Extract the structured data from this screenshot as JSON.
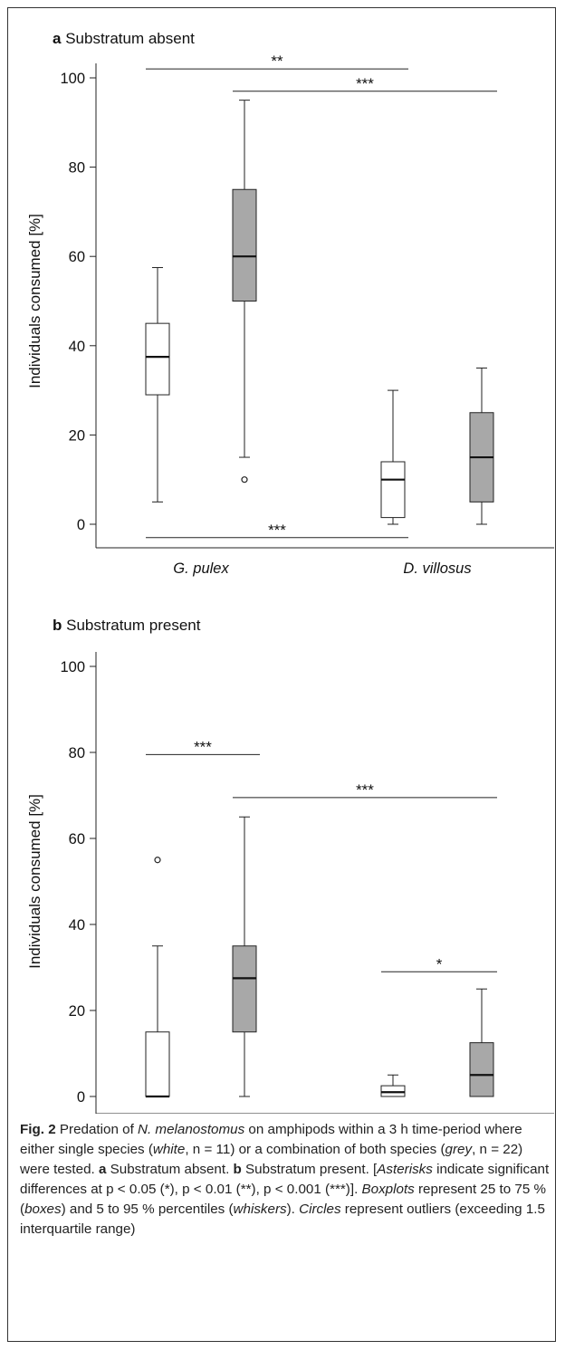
{
  "chart_data": [
    {
      "type": "box",
      "panel_letter": "a",
      "title": "Substratum absent",
      "ylabel": "Individuals consumed [%]",
      "ylim": [
        0,
        100
      ],
      "yticks": [
        0,
        20,
        40,
        60,
        80,
        100
      ],
      "categories": [
        "G. pulex",
        "D. villosus"
      ],
      "fill_colors": {
        "white": "#ffffff",
        "grey": "#a8a8a8"
      },
      "boxes": [
        {
          "category": "G. pulex",
          "fill": "white",
          "whisker_low": 5,
          "q1": 29,
          "median": 37.5,
          "q3": 45,
          "whisker_high": 57.5,
          "outliers": []
        },
        {
          "category": "G. pulex",
          "fill": "grey",
          "whisker_low": 15,
          "q1": 50,
          "median": 60,
          "q3": 75,
          "whisker_high": 95,
          "outliers": [
            10
          ]
        },
        {
          "category": "D. villosus",
          "fill": "white",
          "whisker_low": 0,
          "q1": 1.5,
          "median": 10,
          "q3": 14,
          "whisker_high": 30,
          "outliers": []
        },
        {
          "category": "D. villosus",
          "fill": "grey",
          "whisker_low": 0,
          "q1": 5,
          "median": 15,
          "q3": 25,
          "whisker_high": 35,
          "outliers": []
        }
      ],
      "significance": [
        {
          "from_box": 0,
          "to_box": 2,
          "y": 102,
          "label": "**"
        },
        {
          "from_box": 1,
          "to_box": 3,
          "y": 97,
          "label": "***"
        },
        {
          "from_box": 0,
          "to_box": 2,
          "y": -3,
          "label": "***"
        }
      ]
    },
    {
      "type": "box",
      "panel_letter": "b",
      "title": "Substratum present",
      "ylabel": "Individuals consumed [%]",
      "ylim": [
        0,
        100
      ],
      "yticks": [
        0,
        20,
        40,
        60,
        80,
        100
      ],
      "categories": [
        "G. pulex",
        "D. villosus"
      ],
      "fill_colors": {
        "white": "#ffffff",
        "grey": "#a8a8a8"
      },
      "boxes": [
        {
          "category": "G. pulex",
          "fill": "white",
          "whisker_low": 0,
          "q1": 0,
          "median": 0,
          "q3": 15,
          "whisker_high": 35,
          "outliers": [
            55
          ]
        },
        {
          "category": "G. pulex",
          "fill": "grey",
          "whisker_low": 0,
          "q1": 15,
          "median": 27.5,
          "q3": 35,
          "whisker_high": 65,
          "outliers": []
        },
        {
          "category": "D. villosus",
          "fill": "white",
          "whisker_low": 0,
          "q1": 0,
          "median": 1,
          "q3": 2.5,
          "whisker_high": 5,
          "outliers": []
        },
        {
          "category": "D. villosus",
          "fill": "grey",
          "whisker_low": 0,
          "q1": 0,
          "median": 5,
          "q3": 12.5,
          "whisker_high": 25,
          "outliers": []
        }
      ],
      "significance": [
        {
          "from_box": 0,
          "to_box": 1,
          "y": 79.5,
          "label": "***"
        },
        {
          "from_box": 1,
          "to_box": 3,
          "y": 69.5,
          "label": "***"
        },
        {
          "from_box": 2,
          "to_box": 3,
          "y": 29,
          "label": "*"
        }
      ]
    }
  ],
  "caption": {
    "fig_label": "Fig. 2",
    "t1": "  Predation of ",
    "species": "N. melanostomus",
    "t2": " on amphipods within a 3 h time-period where either single species (",
    "white": "white",
    "t3": ", n = 11) or a combination of both species (",
    "grey": "grey",
    "t4": ", n = 22) were tested. ",
    "a_label": "a",
    "a_text": " Substratum absent. ",
    "b_label": "b",
    "b_text": " Substratum present. [",
    "asterisks": "Asterisks",
    "t5": " indicate significant differences at p < 0.05 (*), p < 0.01 (**), p < 0.001 (***)]. ",
    "boxplots": "Boxplots",
    "t6": " represent 25 to 75 % (",
    "boxes": "boxes",
    "t7": ") and 5 to 95 % percentiles (",
    "whiskers": "whiskers",
    "t8": "). ",
    "circles": "Circles",
    "t9": " represent outliers (exceeding 1.5 interquartile range)"
  }
}
